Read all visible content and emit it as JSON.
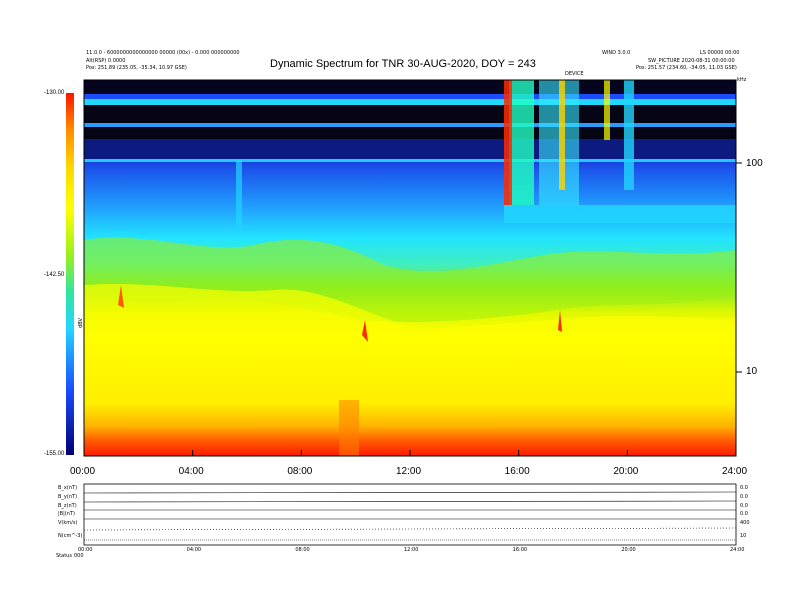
{
  "header": {
    "title": "Dynamic Spectrum for TNR 30-AUG-2020, DOY = 243",
    "left_line1": "11.0.0 - 6000000000000000 00000 (00x) - 0.000 000000000",
    "left_line2": "Alt(RSP) 0.0000",
    "left_pos": "Pos:  251.89 (235.05, -35.34, 10.97 GSE)",
    "right_line1": "WIND 3.0.0",
    "right_line1b": "LS 00000 00:00",
    "right_line2": "SW_PICTURE 2020-08-31 00:00:00",
    "right_pos": "Pos:  251.57 (234.60, -34.05, 11.03 GSE)",
    "mid_marker": "DEVICE",
    "corner_label": "kHz"
  },
  "colorbar": {
    "ticks": [
      "-130.00",
      "-142.50",
      "-155.00"
    ],
    "label": "dBV"
  },
  "bottom_panel": {
    "row_labels": [
      "B_x(nT)",
      "B_y(nT)",
      "B_z(nT)",
      "|B|(nT)",
      "V(km/s)",
      "N(cm^-3)"
    ],
    "right_labels": [
      "0.0",
      "0.0",
      "0.0",
      "0.0",
      "400",
      "10"
    ],
    "time_labels": [
      "00:00",
      "04:00",
      "08:00",
      "12:00",
      "16:00",
      "20:00",
      "24:00"
    ],
    "footer_left": "Status",
    "footer_value": "000"
  },
  "chart_data": {
    "type": "heatmap",
    "title": "Dynamic Spectrum for TNR 30-AUG-2020, DOY = 243",
    "x_ticks": [
      "00:00",
      "04:00",
      "08:00",
      "12:00",
      "16:00",
      "20:00",
      "24:00"
    ],
    "xlim_hours": [
      0,
      24
    ],
    "y_ticks": [
      "100",
      "10"
    ],
    "y_scale": "log",
    "ylim_khz": [
      4,
      256
    ],
    "zlim_dbv": [
      -155,
      -130
    ],
    "colormap": [
      "#1a1aa0",
      "#1c4cff",
      "#21d6ff",
      "#2fe6a0",
      "#7ee829",
      "#ffff00",
      "#ffd400",
      "#ff8c00",
      "#ff1a00"
    ],
    "colors": {
      "dark_band": "#050515",
      "cyan_band": "#20d8ff",
      "background_blue": "#1a40e0"
    },
    "bursts": [
      {
        "time": "01:20",
        "note": "narrow burst near 20 kHz"
      },
      {
        "time": "10:15",
        "note": "intense burst 13-16 kHz"
      },
      {
        "time": "15:40",
        "note": "wideband activity 15:40-17:30 above 60 kHz"
      },
      {
        "time": "17:30",
        "note": "narrow burst near 18 kHz"
      }
    ]
  }
}
